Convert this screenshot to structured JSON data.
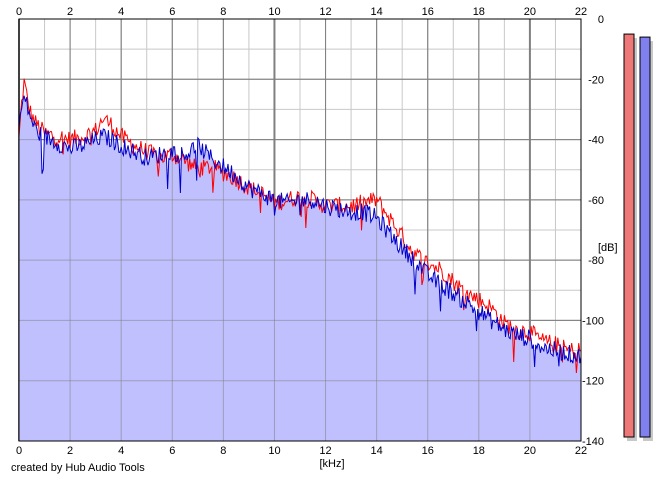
{
  "credit": "created by Hub Audio Tools",
  "colors": {
    "background": "#ffffff",
    "grid_major": "#808080",
    "grid_minor": "#c8c8c8",
    "area_fill": "#c0c0ff",
    "channel_1_line": "#ff0000",
    "channel_2_line": "#0000cc",
    "meter_left_fill": "#ee7777",
    "meter_right_fill": "#8080ee",
    "meter_shadow": "#c8c8c8"
  },
  "meters": [
    {
      "name": "meter-left",
      "level_db": -5
    },
    {
      "name": "meter-right",
      "level_db": -6
    }
  ],
  "chart_data": {
    "type": "area",
    "title": "",
    "xlabel": "[kHz]",
    "ylabel": "[dB]",
    "xlim": [
      0,
      22
    ],
    "ylim": [
      -140,
      0
    ],
    "x_ticks": [
      0,
      2,
      4,
      6,
      8,
      10,
      12,
      14,
      16,
      18,
      20,
      22
    ],
    "y_ticks": [
      0,
      -20,
      -40,
      -60,
      -80,
      -100,
      -120,
      -140
    ],
    "grid": true,
    "series": [
      {
        "channel": "red",
        "points": [
          [
            0,
            -40
          ],
          [
            0.1,
            -28
          ],
          [
            0.2,
            -21
          ],
          [
            0.4,
            -30
          ],
          [
            0.6,
            -34
          ],
          [
            0.8,
            -36
          ],
          [
            1,
            -38
          ],
          [
            1.5,
            -39
          ],
          [
            2,
            -40
          ],
          [
            2.5,
            -39
          ],
          [
            3,
            -37
          ],
          [
            3.3,
            -33
          ],
          [
            3.6,
            -35
          ],
          [
            4,
            -39
          ],
          [
            4.5,
            -42
          ],
          [
            5,
            -44
          ],
          [
            5.5,
            -46
          ],
          [
            6,
            -45
          ],
          [
            6.5,
            -47
          ],
          [
            7,
            -50
          ],
          [
            7.5,
            -49
          ],
          [
            8,
            -51
          ],
          [
            8.5,
            -53
          ],
          [
            9,
            -56
          ],
          [
            9.5,
            -58
          ],
          [
            10,
            -61
          ],
          [
            10.5,
            -60
          ],
          [
            11,
            -59
          ],
          [
            11.5,
            -60
          ],
          [
            12,
            -62
          ],
          [
            12.5,
            -62
          ],
          [
            13,
            -62
          ],
          [
            13.5,
            -61
          ],
          [
            14,
            -60
          ],
          [
            14.5,
            -66
          ],
          [
            15,
            -72
          ],
          [
            15.5,
            -78
          ],
          [
            16,
            -81
          ],
          [
            16.5,
            -83
          ],
          [
            17,
            -87
          ],
          [
            17.5,
            -91
          ],
          [
            18,
            -93
          ],
          [
            18.5,
            -96
          ],
          [
            19,
            -101
          ],
          [
            19.5,
            -103
          ],
          [
            20,
            -104
          ],
          [
            20.5,
            -107
          ],
          [
            21,
            -108
          ],
          [
            21.5,
            -110
          ],
          [
            22,
            -110
          ]
        ]
      },
      {
        "channel": "blue",
        "points": [
          [
            0,
            -35
          ],
          [
            0.1,
            -30
          ],
          [
            0.2,
            -26
          ],
          [
            0.4,
            -31
          ],
          [
            0.6,
            -36
          ],
          [
            0.8,
            -38
          ],
          [
            1,
            -39
          ],
          [
            1.5,
            -41
          ],
          [
            2,
            -43
          ],
          [
            2.5,
            -42
          ],
          [
            3,
            -40
          ],
          [
            3.3,
            -39
          ],
          [
            3.6,
            -40
          ],
          [
            4,
            -42
          ],
          [
            4.5,
            -44
          ],
          [
            5,
            -46
          ],
          [
            5.5,
            -45
          ],
          [
            6,
            -44
          ],
          [
            6.5,
            -45
          ],
          [
            7,
            -42
          ],
          [
            7.5,
            -46
          ],
          [
            8,
            -49
          ],
          [
            8.5,
            -52
          ],
          [
            9,
            -56
          ],
          [
            9.5,
            -58
          ],
          [
            10,
            -60
          ],
          [
            10.5,
            -61
          ],
          [
            11,
            -60
          ],
          [
            11.5,
            -60
          ],
          [
            12,
            -62
          ],
          [
            12.5,
            -63
          ],
          [
            13,
            -64
          ],
          [
            13.5,
            -64
          ],
          [
            14,
            -66
          ],
          [
            14.5,
            -71
          ],
          [
            15,
            -76
          ],
          [
            15.5,
            -80
          ],
          [
            16,
            -85
          ],
          [
            16.5,
            -88
          ],
          [
            17,
            -91
          ],
          [
            17.5,
            -94
          ],
          [
            18,
            -97
          ],
          [
            18.5,
            -100
          ],
          [
            19,
            -103
          ],
          [
            19.5,
            -105
          ],
          [
            20,
            -106
          ],
          [
            20.5,
            -109
          ],
          [
            21,
            -110
          ],
          [
            21.5,
            -111
          ],
          [
            22,
            -112
          ]
        ]
      }
    ]
  }
}
